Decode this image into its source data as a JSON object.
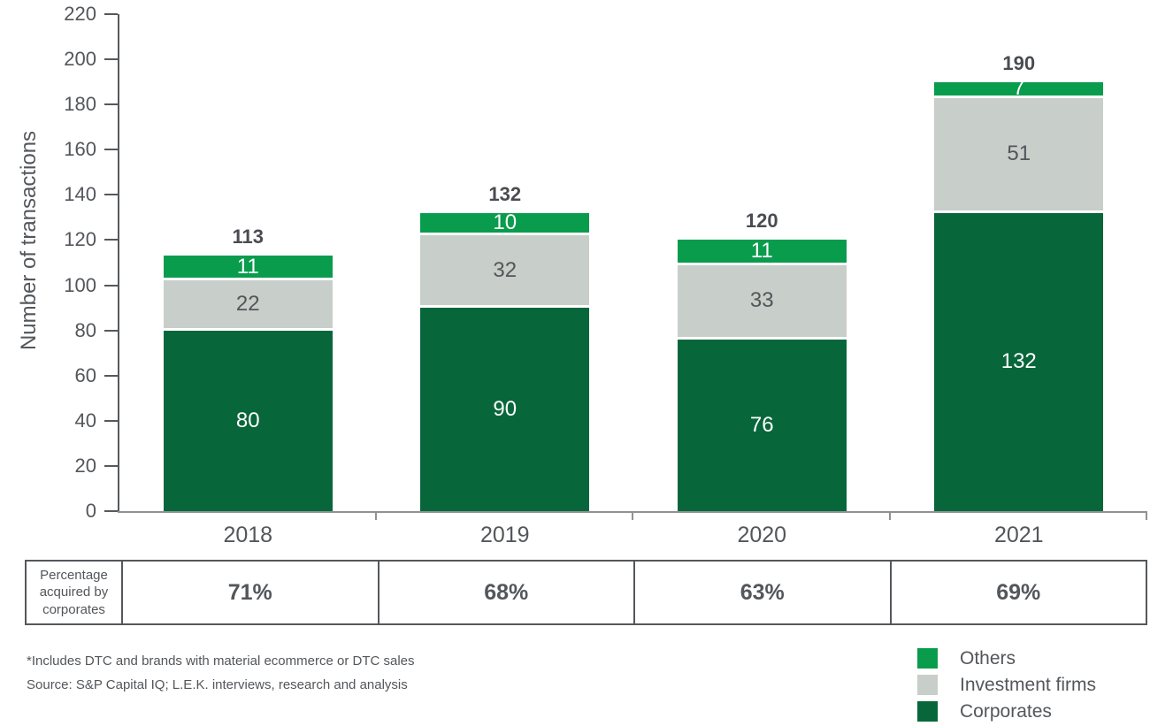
{
  "chart_data": {
    "type": "bar",
    "stacked": true,
    "title": "",
    "xlabel": "",
    "ylabel": "Number of transactions",
    "ylim": [
      0,
      220
    ],
    "ytick_step": 20,
    "grid": false,
    "legend_position": "bottom-right",
    "categories": [
      "2018",
      "2019",
      "2020",
      "2021"
    ],
    "series": [
      {
        "name": "Corporates",
        "color": "#07673a",
        "label_color": "#ffffff",
        "values": [
          80,
          90,
          76,
          132
        ]
      },
      {
        "name": "Investment firms",
        "color": "#c8cec9",
        "label_color": "#53565a",
        "values": [
          22,
          32,
          33,
          51
        ]
      },
      {
        "name": "Others",
        "color": "#0a9c4d",
        "label_color": "#ffffff",
        "values": [
          11,
          10,
          11,
          7
        ]
      }
    ],
    "totals": [
      113,
      132,
      120,
      190
    ]
  },
  "table": {
    "row_label": "Percentage acquired by corporates",
    "values": [
      "71%",
      "68%",
      "63%",
      "69%"
    ]
  },
  "legend": [
    {
      "label": "Others",
      "color": "#0a9c4d"
    },
    {
      "label": "Investment firms",
      "color": "#c8cec9"
    },
    {
      "label": "Corporates",
      "color": "#07673a"
    }
  ],
  "footnotes": [
    "*Includes DTC and brands with material ecommerce or DTC sales",
    "Source: S&P Capital IQ; L.E.K. interviews, research and analysis"
  ],
  "colors": {
    "corporates": "#07673a",
    "investment_firms": "#c8cec9",
    "others": "#0a9c4d",
    "axis": "#55585c",
    "baseline": "#8f9295",
    "text": "#53565a",
    "total_label": "#494c50"
  }
}
